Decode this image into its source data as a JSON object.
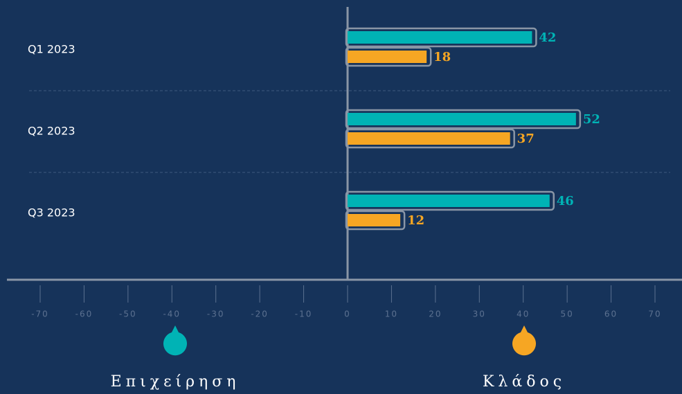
{
  "chart_data": {
    "type": "bar",
    "orientation": "horizontal",
    "categories": [
      "Q1 2023",
      "Q2 2023",
      "Q3 2023"
    ],
    "series": [
      {
        "name": "Επιχείρηση",
        "color": "#00b3b5",
        "values": [
          42,
          52,
          46
        ]
      },
      {
        "name": "Κλάδος",
        "color": "#f6a623",
        "values": [
          18,
          37,
          12
        ]
      }
    ],
    "xlim": [
      -70,
      70
    ],
    "xticks": [
      -70,
      -60,
      -50,
      -40,
      -30,
      -20,
      -10,
      0,
      10,
      20,
      30,
      40,
      50,
      60,
      70
    ],
    "grid": false,
    "legend": "bottom"
  }
}
